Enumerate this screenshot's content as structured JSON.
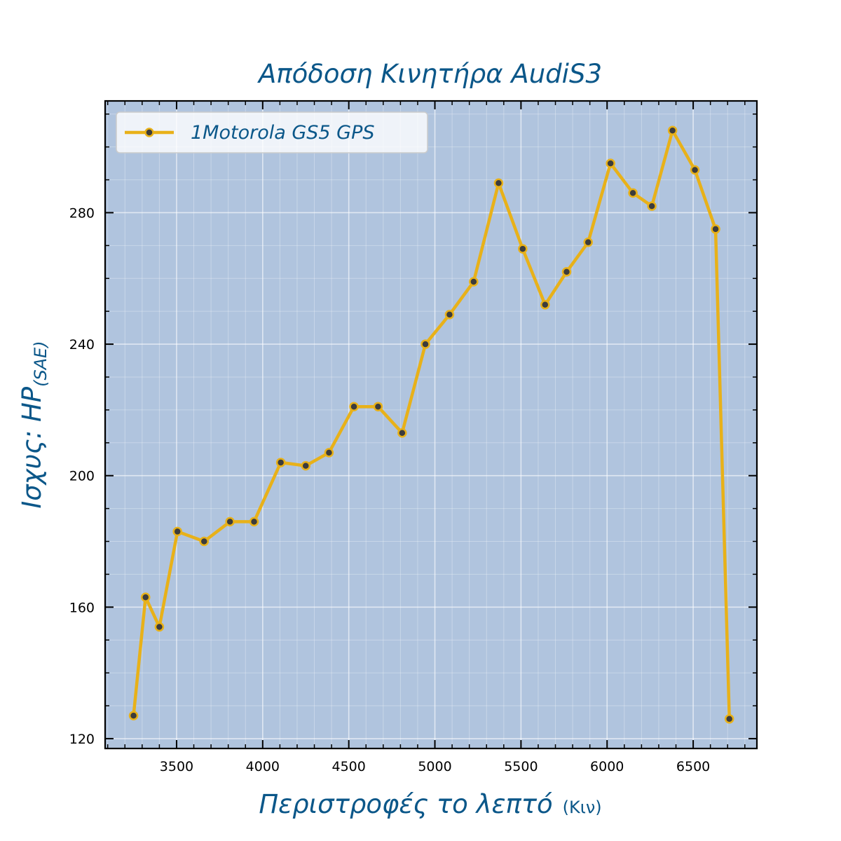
{
  "chart_data": {
    "type": "line",
    "title": "Απόδοση Κινητήρα AudiS3",
    "xlabel": "Περιστροφές το λεπτό",
    "xlabel_unit": "(Κιν)",
    "ylabel": "Ισχυς: HP",
    "ylabel_sub": "(SAE)",
    "xlim": [
      3085,
      6870
    ],
    "ylim": [
      117,
      314
    ],
    "x_ticks": [
      3500,
      4000,
      4500,
      5000,
      5500,
      6000,
      6500
    ],
    "y_ticks": [
      120,
      160,
      200,
      240,
      280
    ],
    "grid": true,
    "legend_position": "upper-left",
    "series": [
      {
        "name": "1Motorola GS5 GPS",
        "x": [
          3250,
          3320,
          3400,
          3505,
          3660,
          3810,
          3950,
          4105,
          4250,
          4385,
          4530,
          4670,
          4810,
          4945,
          5085,
          5225,
          5370,
          5510,
          5640,
          5765,
          5890,
          6020,
          6150,
          6260,
          6380,
          6510,
          6630,
          6710
        ],
        "y": [
          127,
          163,
          154,
          183,
          180,
          186,
          186,
          204,
          203,
          207,
          221,
          221,
          213,
          240,
          249,
          259,
          289,
          269,
          252,
          262,
          271,
          295,
          286,
          282,
          305,
          293,
          275,
          126
        ]
      }
    ]
  },
  "colors": {
    "line": "#e8b119",
    "marker_face": "#3c3c3c",
    "plot_background": "#b0c4de",
    "text_accent": "#0b5789"
  }
}
